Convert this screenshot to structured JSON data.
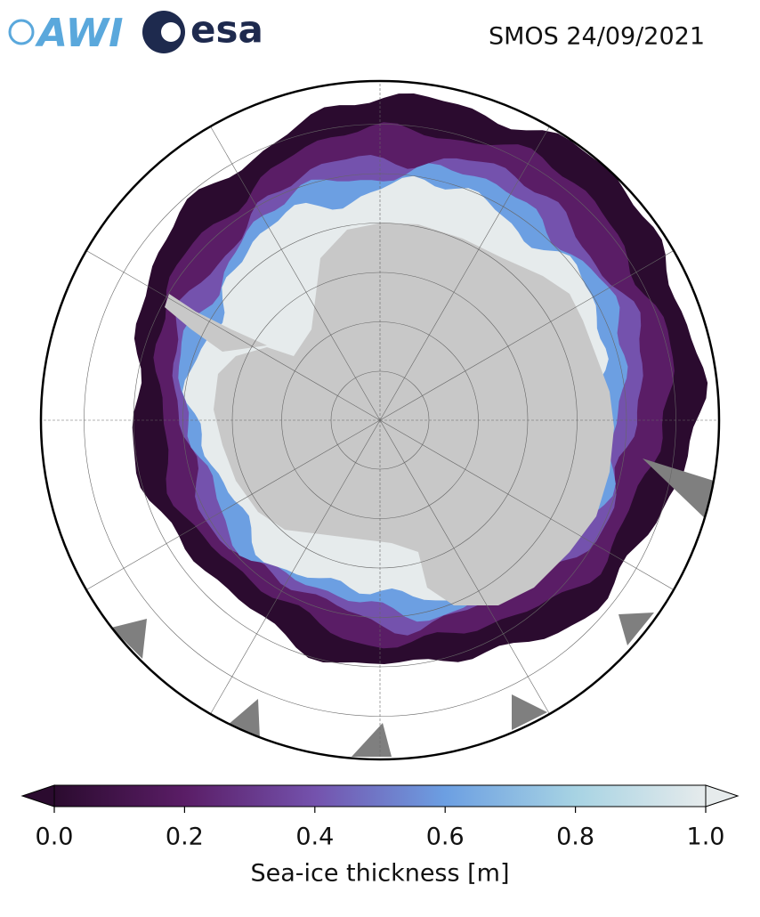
{
  "logos": {
    "awi": "AWI",
    "esa": "esa"
  },
  "title": "SMOS 24/09/2021",
  "colorbar": {
    "label": "Sea-ice thickness [m]",
    "lim": [
      0,
      1
    ],
    "ticks": [
      {
        "value": 0,
        "label": "0.0"
      },
      {
        "value": 0.2,
        "label": "0.2"
      },
      {
        "value": 0.4,
        "label": "0.4"
      },
      {
        "value": 0.6,
        "label": "0.6"
      },
      {
        "value": 0.8,
        "label": "0.8"
      },
      {
        "value": 1,
        "label": "1.0"
      }
    ],
    "colors": [
      "#2b0b2f",
      "#5a1d66",
      "#7452ad",
      "#6c9fe2",
      "#a7d3e3",
      "#e6ebec"
    ]
  }
}
